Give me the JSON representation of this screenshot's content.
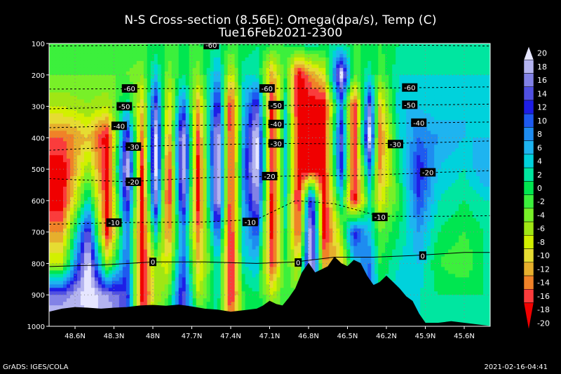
{
  "chart_data": {
    "type": "heatmap",
    "title": "N-S Cross-section (8.56E): Omega(dpa/s), Temp (C)",
    "subtitle": "Tue16Feb2021-2300",
    "y_axis": {
      "quantity": "pressure",
      "unit": "hPa",
      "inverted": true,
      "range": [
        100,
        1000
      ],
      "ticks": [
        100,
        200,
        300,
        400,
        500,
        600,
        700,
        800,
        900,
        1000
      ]
    },
    "x_axis": {
      "quantity": "latitude",
      "unit": "degrees N",
      "inverted": true,
      "range": [
        48.8,
        45.4
      ],
      "ticks": [
        48.6,
        48.3,
        48.0,
        47.7,
        47.4,
        47.1,
        46.8,
        46.5,
        46.2,
        45.9,
        45.6
      ],
      "tick_labels": [
        "48.6N",
        "48.3N",
        "48N",
        "47.7N",
        "47.4N",
        "47.1N",
        "46.8N",
        "46.5N",
        "46.2N",
        "45.9N",
        "45.6N"
      ]
    },
    "grid": true,
    "colorbar": {
      "placement": "right",
      "levels": [
        20,
        18,
        16,
        14,
        12,
        10,
        8,
        6,
        4,
        2,
        0,
        -2,
        -4,
        -6,
        -8,
        -10,
        -12,
        -14,
        -16,
        -18,
        -20
      ],
      "labels": [
        "20",
        "18",
        "16",
        "14",
        "12",
        "10",
        "8",
        "6",
        "4",
        "2",
        "0",
        "-2",
        "-4",
        "-6",
        "-8",
        "-10",
        "-12",
        "-14",
        "-16",
        "-18",
        "-20"
      ],
      "colors": [
        "#e6e6ff",
        "#b4b4f0",
        "#8282e6",
        "#5050e1",
        "#1e1ee6",
        "#1e5af0",
        "#1e8cf0",
        "#1eb4f0",
        "#00d2dc",
        "#00e6a0",
        "#00e650",
        "#3cf03c",
        "#78f028",
        "#a0e614",
        "#d2f000",
        "#e6dc32",
        "#e6af2d",
        "#f08228",
        "#fa3c3c",
        "#f00000"
      ]
    },
    "omega_columns": [
      {
        "lat": 48.7,
        "v": [
          -2,
          -4,
          -8,
          -16,
          -20,
          -20,
          -14,
          -8,
          14,
          20
        ]
      },
      {
        "lat": 48.5,
        "v": [
          -2,
          -4,
          -6,
          -12,
          -6,
          2,
          14,
          20,
          20,
          16
        ]
      },
      {
        "lat": 48.35,
        "v": [
          -2,
          -4,
          -8,
          -20,
          -20,
          -20,
          -20,
          -8,
          16,
          20
        ]
      },
      {
        "lat": 48.2,
        "v": [
          -2,
          -4,
          2,
          14,
          20,
          14,
          8,
          10,
          12,
          10
        ]
      },
      {
        "lat": 48.08,
        "v": [
          -2,
          -6,
          -12,
          -16,
          -20,
          -20,
          -20,
          -20,
          -20,
          -16
        ]
      },
      {
        "lat": 47.98,
        "v": [
          -2,
          4,
          14,
          20,
          20,
          16,
          4,
          -6,
          -8,
          -4
        ]
      },
      {
        "lat": 47.88,
        "v": [
          -2,
          -6,
          -12,
          -16,
          -20,
          -20,
          -16,
          -10,
          -4,
          2
        ]
      },
      {
        "lat": 47.77,
        "v": [
          -2,
          0,
          10,
          20,
          20,
          16,
          8,
          10,
          14,
          12
        ]
      },
      {
        "lat": 47.65,
        "v": [
          -2,
          -6,
          -14,
          -18,
          -20,
          -20,
          -16,
          -12,
          -8,
          2
        ]
      },
      {
        "lat": 47.5,
        "v": [
          0,
          6,
          14,
          20,
          20,
          20,
          10,
          2,
          2,
          0
        ]
      },
      {
        "lat": 47.4,
        "v": [
          -2,
          -10,
          -20,
          -20,
          -20,
          -20,
          -20,
          -20,
          -20,
          -14
        ]
      },
      {
        "lat": 47.3,
        "v": [
          -2,
          2,
          4,
          6,
          8,
          6,
          4,
          2,
          -2,
          -2
        ]
      },
      {
        "lat": 47.2,
        "v": [
          0,
          2,
          14,
          20,
          20,
          16,
          10,
          4,
          0,
          0
        ]
      },
      {
        "lat": 47.08,
        "v": [
          -2,
          -14,
          -20,
          -20,
          -20,
          -20,
          -20,
          -18,
          -8,
          -2
        ]
      },
      {
        "lat": 46.98,
        "v": [
          -2,
          -2,
          2,
          4,
          4,
          2,
          0,
          -2,
          -2,
          -2
        ]
      },
      {
        "lat": 46.88,
        "v": [
          0,
          -20,
          -20,
          -20,
          -20,
          -20,
          -18,
          -10,
          -4,
          -2
        ]
      },
      {
        "lat": 46.78,
        "v": [
          2,
          -14,
          -20,
          -20,
          -20,
          14,
          20,
          20,
          20,
          20
        ]
      },
      {
        "lat": 46.68,
        "v": [
          0,
          -10,
          -20,
          -20,
          -20,
          -20,
          -20,
          -14,
          -6,
          -2
        ]
      },
      {
        "lat": 46.55,
        "v": [
          0,
          20,
          8,
          14,
          12,
          2,
          -6,
          -12,
          -4,
          -2
        ]
      },
      {
        "lat": 46.45,
        "v": [
          -2,
          -4,
          -20,
          -20,
          -20,
          -20,
          12,
          4,
          2,
          0
        ]
      },
      {
        "lat": 46.33,
        "v": [
          -2,
          2,
          14,
          20,
          8,
          0,
          4,
          8,
          10,
          12
        ]
      },
      {
        "lat": 46.25,
        "v": [
          -2,
          -4,
          -12,
          -16,
          -14,
          -10,
          -4,
          -2,
          0,
          2
        ]
      },
      {
        "lat": 46.1,
        "v": [
          0,
          2,
          4,
          2,
          0,
          -2,
          0,
          2,
          4,
          6
        ]
      },
      {
        "lat": 45.95,
        "v": [
          0,
          2,
          4,
          8,
          12,
          10,
          6,
          4,
          2,
          2
        ]
      },
      {
        "lat": 45.8,
        "v": [
          0,
          2,
          2,
          6,
          4,
          2,
          0,
          -2,
          0,
          0
        ]
      },
      {
        "lat": 45.6,
        "v": [
          0,
          2,
          4,
          4,
          2,
          0,
          -2,
          -4,
          0,
          0
        ]
      },
      {
        "lat": 45.45,
        "v": [
          0,
          2,
          2,
          4,
          6,
          2,
          0,
          0,
          0,
          0
        ]
      }
    ],
    "temperature_contours": [
      {
        "label": "-60",
        "points": [
          [
            48.8,
            108
          ],
          [
            48.2,
            106
          ],
          [
            47.6,
            104
          ],
          [
            47.0,
            104
          ],
          [
            46.4,
            104
          ],
          [
            45.8,
            106
          ],
          [
            45.4,
            108
          ]
        ],
        "label_at": [
          47.55,
          105
        ]
      },
      {
        "label": "-60",
        "points": [
          [
            48.8,
            245
          ],
          [
            48.2,
            244
          ],
          [
            47.6,
            243
          ],
          [
            47.0,
            243
          ],
          [
            46.4,
            242
          ],
          [
            45.8,
            240
          ],
          [
            45.4,
            238
          ]
        ],
        "label_at": [
          48.18,
          243
        ],
        "extra_labels": [
          [
            47.12,
            243
          ],
          [
            46.02,
            240
          ]
        ]
      },
      {
        "label": "-50",
        "points": [
          [
            48.8,
            308
          ],
          [
            48.2,
            302
          ],
          [
            47.6,
            300
          ],
          [
            47.0,
            297
          ],
          [
            46.4,
            296
          ],
          [
            45.8,
            295
          ],
          [
            45.4,
            293
          ]
        ],
        "label_at": [
          48.22,
          300
        ],
        "extra_labels": [
          [
            47.05,
            296
          ],
          [
            46.02,
            295
          ]
        ]
      },
      {
        "label": "-40",
        "points": [
          [
            48.8,
            368
          ],
          [
            48.2,
            362
          ],
          [
            47.6,
            360
          ],
          [
            47.0,
            357
          ],
          [
            46.4,
            355
          ],
          [
            45.8,
            352
          ],
          [
            45.4,
            350
          ]
        ],
        "label_at": [
          48.26,
          362
        ],
        "extra_labels": [
          [
            47.05,
            356
          ],
          [
            45.95,
            352
          ]
        ]
      },
      {
        "label": "-30",
        "points": [
          [
            48.8,
            440
          ],
          [
            48.2,
            428
          ],
          [
            47.6,
            422
          ],
          [
            47.0,
            418
          ],
          [
            46.4,
            420
          ],
          [
            45.8,
            415
          ],
          [
            45.4,
            410
          ]
        ],
        "label_at": [
          48.15,
          428
        ],
        "extra_labels": [
          [
            47.05,
            418
          ],
          [
            46.13,
            420
          ]
        ]
      },
      {
        "label": "-20",
        "points": [
          [
            48.8,
            530
          ],
          [
            48.2,
            540
          ],
          [
            47.6,
            527
          ],
          [
            47.0,
            522
          ],
          [
            46.4,
            520
          ],
          [
            45.8,
            510
          ],
          [
            45.4,
            505
          ]
        ],
        "label_at": [
          48.15,
          540
        ],
        "extra_labels": [
          [
            47.1,
            522
          ],
          [
            45.88,
            510
          ]
        ]
      },
      {
        "label": "-10",
        "points": [
          [
            48.8,
            675
          ],
          [
            48.2,
            670
          ],
          [
            47.6,
            668
          ],
          [
            47.2,
            660
          ],
          [
            46.9,
            600
          ],
          [
            46.6,
            610
          ],
          [
            46.25,
            650
          ],
          [
            45.8,
            650
          ],
          [
            45.4,
            648
          ]
        ],
        "label_at": [
          48.3,
          670
        ],
        "extra_labels": [
          [
            47.25,
            668
          ],
          [
            46.25,
            652
          ]
        ]
      },
      {
        "label": "0",
        "points": [
          [
            48.8,
            810
          ],
          [
            48.4,
            805
          ],
          [
            48.0,
            795
          ],
          [
            47.6,
            795
          ],
          [
            47.2,
            800
          ],
          [
            46.9,
            795
          ],
          [
            46.6,
            780
          ],
          [
            46.3,
            780
          ],
          [
            46.0,
            775
          ],
          [
            45.6,
            765
          ],
          [
            45.4,
            765
          ]
        ],
        "label_at": [
          48.0,
          795
        ],
        "extra_labels": [
          [
            46.88,
            797
          ],
          [
            45.92,
            775
          ]
        ]
      }
    ],
    "terrain_top": [
      [
        48.8,
        955
      ],
      [
        48.7,
        945
      ],
      [
        48.6,
        940
      ],
      [
        48.5,
        942
      ],
      [
        48.4,
        945
      ],
      [
        48.3,
        942
      ],
      [
        48.2,
        940
      ],
      [
        48.1,
        935
      ],
      [
        48.0,
        933
      ],
      [
        47.9,
        936
      ],
      [
        47.8,
        932
      ],
      [
        47.7,
        938
      ],
      [
        47.6,
        945
      ],
      [
        47.5,
        948
      ],
      [
        47.4,
        955
      ],
      [
        47.3,
        950
      ],
      [
        47.2,
        945
      ],
      [
        47.15,
        935
      ],
      [
        47.1,
        920
      ],
      [
        47.05,
        930
      ],
      [
        47.0,
        935
      ],
      [
        46.95,
        910
      ],
      [
        46.9,
        880
      ],
      [
        46.85,
        830
      ],
      [
        46.8,
        800
      ],
      [
        46.75,
        830
      ],
      [
        46.7,
        820
      ],
      [
        46.65,
        810
      ],
      [
        46.6,
        780
      ],
      [
        46.55,
        800
      ],
      [
        46.5,
        810
      ],
      [
        46.45,
        790
      ],
      [
        46.4,
        800
      ],
      [
        46.35,
        840
      ],
      [
        46.3,
        870
      ],
      [
        46.25,
        860
      ],
      [
        46.2,
        840
      ],
      [
        46.15,
        860
      ],
      [
        46.1,
        880
      ],
      [
        46.05,
        905
      ],
      [
        46.0,
        920
      ],
      [
        45.95,
        960
      ],
      [
        45.9,
        990
      ],
      [
        45.8,
        990
      ],
      [
        45.7,
        985
      ],
      [
        45.6,
        990
      ],
      [
        45.5,
        995
      ],
      [
        45.4,
        1000
      ]
    ]
  },
  "footer": {
    "left": "GrADS: IGES/COLA",
    "right": "2021-02-16-04:41"
  }
}
